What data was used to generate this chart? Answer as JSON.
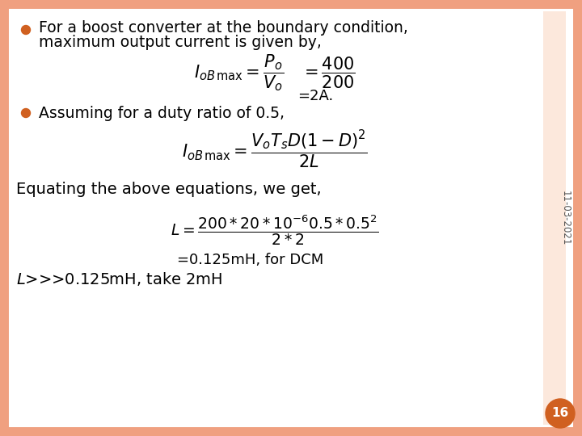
{
  "bg_color": "#ffffff",
  "border_color": "#f0a080",
  "slide_bg": "#fce8dc",
  "bullet_color": "#d06020",
  "text_color": "#000000",
  "page_number": "16",
  "page_num_bg": "#d06020",
  "page_num_color": "#ffffff",
  "date_text": "11-03-2021",
  "bullet1_line1": "For a boost converter at the boundary condition,",
  "bullet1_line2": "maximum output current is given by,",
  "eq1_lhs": "$I_{oB\\,\\mathrm{max}} = \\dfrac{P_o}{V_o}\\quad   = \\dfrac{400}{200}$",
  "eq1_result": "=2A.",
  "bullet2_text": "Assuming for a duty ratio of 0.5,",
  "eq2": "$I_{oB\\,\\mathrm{max}} = \\dfrac{V_o T_s D(1-D)^2}{2L}$",
  "equating_text": "Equating the above equations, we get,",
  "eq3": "$L = \\dfrac{200*20*10^{-6}0.5*0.5^2}{2*2}$",
  "eq3_result": "=0.125mH, for DCM",
  "final_line": "L>>>0.125mH, take 2mH"
}
